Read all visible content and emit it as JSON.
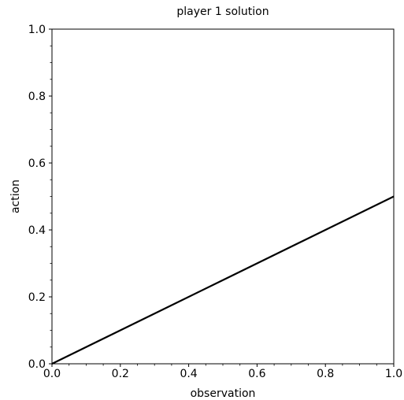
{
  "chart_data": {
    "type": "line",
    "title": "player 1 solution",
    "xlabel": "observation",
    "ylabel": "action",
    "xlim": [
      0.0,
      1.0
    ],
    "ylim": [
      0.0,
      1.0
    ],
    "xticks": [
      "0.0",
      "0.2",
      "0.4",
      "0.6",
      "0.8",
      "1.0"
    ],
    "yticks": [
      "0.0",
      "0.2",
      "0.4",
      "0.6",
      "0.8",
      "1.0"
    ],
    "grid": false,
    "series": [
      {
        "x": [
          0.0,
          0.25,
          0.5,
          0.75,
          1.0
        ],
        "y": [
          0.0,
          0.125,
          0.25,
          0.375,
          0.5
        ]
      }
    ],
    "colors": {
      "line": "#000000",
      "axes": "#000000",
      "background": "#ffffff"
    }
  }
}
